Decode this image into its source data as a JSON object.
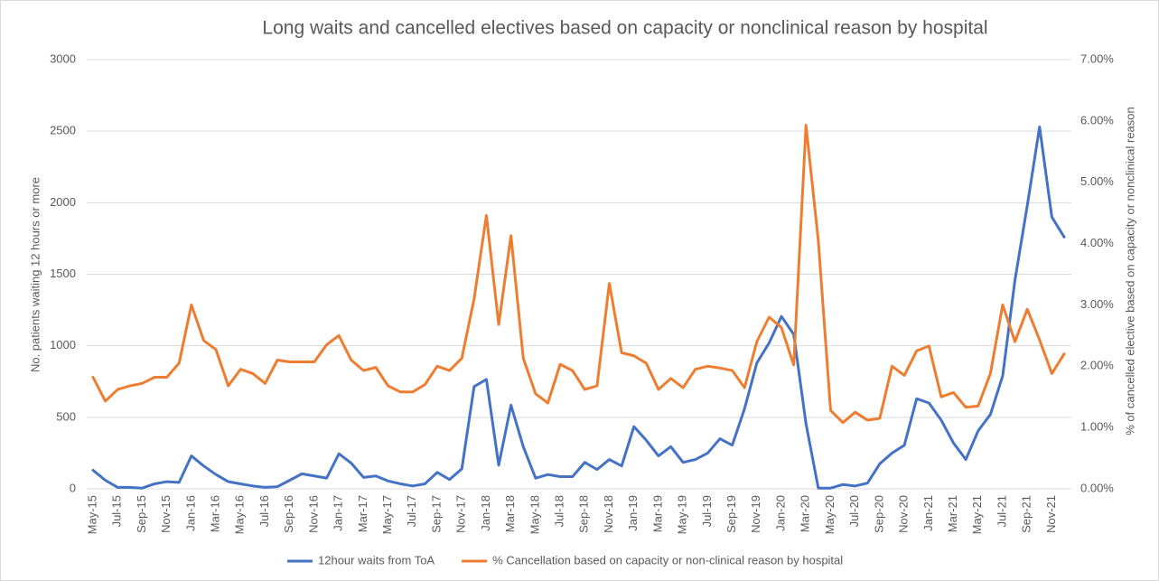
{
  "chart_data": {
    "type": "line",
    "title": "Long waits and cancelled electives based on capacity or nonclinical reason by hospital",
    "y_label": "No. patients waiting 12 hours or more",
    "y2_label": "% of cancelled elective based on capacity or nonclinical reason",
    "categories": [
      "May-15",
      null,
      "Jul-15",
      null,
      "Sep-15",
      null,
      "Nov-15",
      null,
      "Jan-16",
      null,
      "Mar-16",
      null,
      "May-16",
      null,
      "Jul-16",
      null,
      "Sep-16",
      null,
      "Nov-16",
      null,
      "Jan-17",
      null,
      "Mar-17",
      null,
      "May-17",
      null,
      "Jul-17",
      null,
      "Sep-17",
      null,
      "Nov-17",
      null,
      "Jan-18",
      null,
      "Mar-18",
      null,
      "May-18",
      null,
      "Jul-18",
      null,
      "Sep-18",
      null,
      "Nov-18",
      null,
      "Jan-19",
      null,
      "Mar-19",
      null,
      "May-19",
      null,
      "Jul-19",
      null,
      "Sep-19",
      null,
      "Nov-19",
      null,
      "Jan-20",
      null,
      "Mar-20",
      null,
      "May-20",
      null,
      "Jul-20",
      null,
      "Sep-20",
      null,
      "Nov-20",
      null,
      "Jan-21",
      null,
      "Mar-21",
      null,
      "May-21",
      null,
      "Jul-21",
      null,
      "Sep-21",
      null,
      "Nov-21",
      null
    ],
    "series": [
      {
        "name": "12hour waits from ToA",
        "color": "#4472c4",
        "axis": "y",
        "values": [
          130,
          60,
          10,
          10,
          5,
          35,
          50,
          45,
          230,
          160,
          100,
          50,
          35,
          20,
          10,
          15,
          60,
          105,
          90,
          75,
          245,
          180,
          80,
          90,
          55,
          35,
          20,
          35,
          115,
          65,
          140,
          715,
          765,
          165,
          585,
          295,
          75,
          100,
          85,
          85,
          185,
          135,
          205,
          160,
          435,
          340,
          230,
          295,
          185,
          205,
          250,
          350,
          305,
          560,
          880,
          1020,
          1205,
          1080,
          455,
          5,
          5,
          30,
          20,
          40,
          175,
          250,
          305,
          630,
          600,
          480,
          320,
          205,
          405,
          520,
          790,
          1460,
          1980,
          2530,
          1900,
          1760
        ]
      },
      {
        "name": "% Cancellation based on capacity or non-clinical reason by hospital",
        "color": "#ed7d31",
        "axis": "y2",
        "values": [
          1.82,
          1.43,
          1.62,
          1.68,
          1.72,
          1.82,
          1.82,
          2.05,
          3.0,
          2.42,
          2.27,
          1.68,
          1.95,
          1.88,
          1.72,
          2.1,
          2.07,
          2.07,
          2.07,
          2.35,
          2.5,
          2.1,
          1.93,
          1.98,
          1.68,
          1.58,
          1.58,
          1.7,
          2.0,
          1.93,
          2.13,
          3.1,
          4.46,
          2.68,
          4.13,
          2.13,
          1.55,
          1.4,
          2.03,
          1.93,
          1.62,
          1.68,
          3.35,
          2.22,
          2.17,
          2.05,
          1.62,
          1.8,
          1.65,
          1.95,
          2.0,
          1.97,
          1.93,
          1.65,
          2.4,
          2.8,
          2.63,
          2.02,
          5.93,
          4.05,
          1.28,
          1.08,
          1.25,
          1.12,
          1.15,
          2.0,
          1.85,
          2.25,
          2.33,
          1.5,
          1.57,
          1.33,
          1.35,
          1.88,
          3.0,
          2.4,
          2.93,
          2.43,
          1.88,
          2.2
        ]
      }
    ],
    "ylim": [
      0,
      3000
    ],
    "yticks": [
      0,
      500,
      1000,
      1500,
      2000,
      2500,
      3000
    ],
    "y2lim": [
      0,
      7
    ],
    "y2ticks": [
      {
        "value": 0,
        "label": "0.00%"
      },
      {
        "value": 1,
        "label": "1.00%"
      },
      {
        "value": 2,
        "label": "2.00%"
      },
      {
        "value": 3,
        "label": "3.00%"
      },
      {
        "value": 4,
        "label": "4.00%"
      },
      {
        "value": 5,
        "label": "5.00%"
      },
      {
        "value": 6,
        "label": "6.00%"
      },
      {
        "value": 7,
        "label": "7.00%"
      }
    ],
    "grid": true,
    "legend": "bottom"
  }
}
